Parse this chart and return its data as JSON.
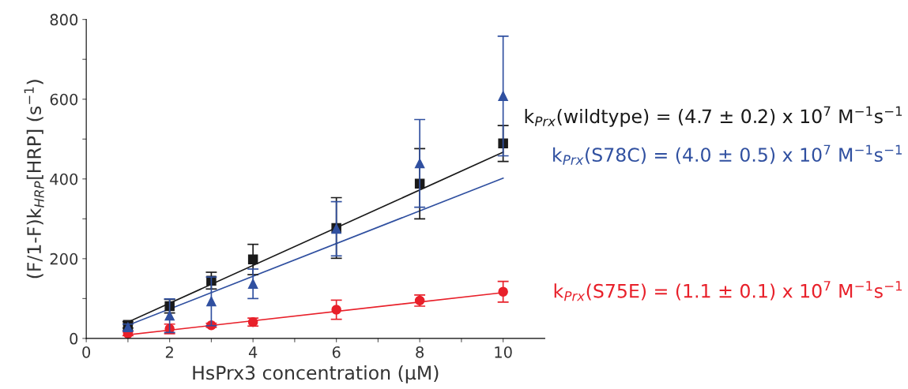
{
  "chart_data": {
    "type": "scatter",
    "xlabel": "HsPrx3 concentration (µM)",
    "ylabel": "(F/1-F)k$_{HRP}$[HRP] (s$^{−1}$)",
    "xlim": [
      0,
      11
    ],
    "ylim": [
      0,
      800
    ],
    "xticks": [
      0,
      {
        "value": 1,
        "label": null
      },
      2,
      {
        "value": 3,
        "label": null
      },
      4,
      {
        "value": 5,
        "label": null
      },
      6,
      {
        "value": 7,
        "label": null
      },
      8,
      {
        "value": 9,
        "label": null
      },
      10
    ],
    "yticks": [
      0,
      {
        "value": 100,
        "label": null
      },
      200,
      {
        "value": 300,
        "label": null
      },
      400,
      {
        "value": 500,
        "label": null
      },
      600,
      {
        "value": 700,
        "label": null
      },
      800
    ],
    "grid": false,
    "series": [
      {
        "type": "line",
        "name": "k$_{Prx}$(wildtype) = (4.7 ± 0.2) x 10$^{7}$ M$^{−1}$s$^{−1}$",
        "color": "#1a1a1a",
        "x": [
          1,
          10
        ],
        "values": [
          41,
          467
        ],
        "marker": "none"
      },
      {
        "type": "line",
        "name": "k$_{Prx}$(S78C) = (4.0 ± 0.5) x 10$^{7}$ M$^{−1}$s$^{−1}$",
        "color": "#3050a0",
        "x": [
          1,
          10
        ],
        "values": [
          33,
          402
        ],
        "marker": "none"
      },
      {
        "type": "line",
        "name": "k$_{Prx}$(S75E) = (1.1 ± 0.1) x 10$^{7}$ M$^{−1}$s$^{−1}$",
        "color": "#e8202a",
        "x": [
          1,
          10
        ],
        "values": [
          9,
          115
        ],
        "marker": "none"
      },
      {
        "color": "#e8202a",
        "marker": "circle",
        "x": [
          1,
          2,
          3,
          4,
          6,
          8,
          10
        ],
        "values": [
          12,
          24,
          33,
          41,
          72,
          95,
          117
        ],
        "errors": [
          5,
          12,
          5,
          10,
          24,
          14,
          26
        ]
      },
      {
        "color": "#1a1a1a",
        "marker": "square",
        "x": [
          1,
          2,
          3,
          4,
          6,
          8,
          10
        ],
        "values": [
          34,
          81,
          145,
          198,
          277,
          388,
          489
        ],
        "errors": [
          8,
          17,
          21,
          38,
          76,
          88,
          45
        ]
      },
      {
        "color": "#3050a0",
        "marker": "triangle",
        "x": [
          1,
          2,
          3,
          4,
          6,
          8,
          10
        ],
        "values": [
          28,
          57,
          93,
          137,
          275,
          439,
          608
        ],
        "errors": [
          8,
          42,
          [
            32,
            154
          ],
          37,
          68,
          110,
          150
        ]
      }
    ]
  }
}
